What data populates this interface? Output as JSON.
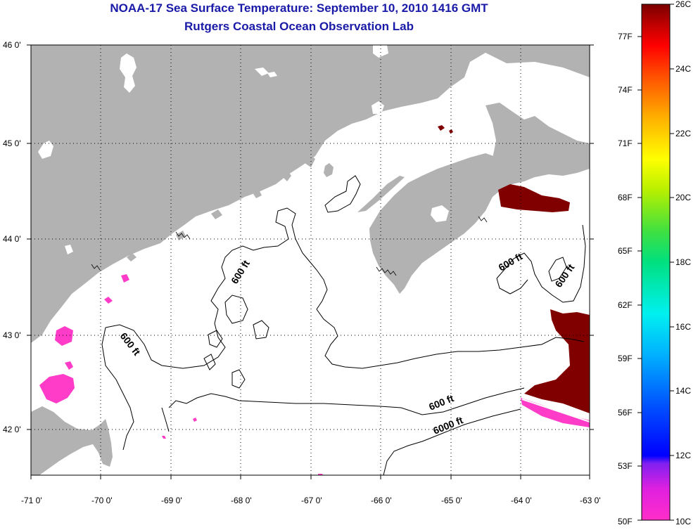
{
  "title": "NOAA-17 Sea Surface Temperature:  September 10, 2010 1416 GMT",
  "subtitle": "Rutgers Coastal Ocean Observation Lab",
  "map": {
    "lon_ticks": [
      "-71 0'",
      "-70 0'",
      "-69 0'",
      "-68 0'",
      "-67 0'",
      "-66 0'",
      "-65 0'",
      "-64 0'",
      "-63 0'"
    ],
    "lat_ticks": [
      "46 0'",
      "45 0'",
      "44 0'",
      "43 0'",
      "42 0'"
    ],
    "lon_range": [
      -71,
      -63
    ],
    "lat_range": [
      41.5,
      46
    ],
    "land_color": "#b2b2b2",
    "water_color": "#ffffff",
    "grid": "dotted",
    "contour_labels": [
      "600 ft",
      "600 ft",
      "600 ft",
      "600 ft",
      "600 ft",
      "6000 ft"
    ]
  },
  "colorbar": {
    "fahrenheit_labels": [
      "77F",
      "74F",
      "71F",
      "68F",
      "65F",
      "62F",
      "59F",
      "56F",
      "53F",
      "50F"
    ],
    "celsius_labels": [
      "26C",
      "24C",
      "22C",
      "20C",
      "18C",
      "16C",
      "14C",
      "12C",
      "10C"
    ],
    "range_c": [
      10,
      26
    ],
    "colors": [
      "#ff2ec8",
      "#a020f0",
      "#0000ff",
      "#0090ff",
      "#00e5ff",
      "#00e090",
      "#40e040",
      "#c8f000",
      "#ffff00",
      "#ffb000",
      "#ff6000",
      "#ff0000",
      "#c00000",
      "#7a0000"
    ]
  }
}
